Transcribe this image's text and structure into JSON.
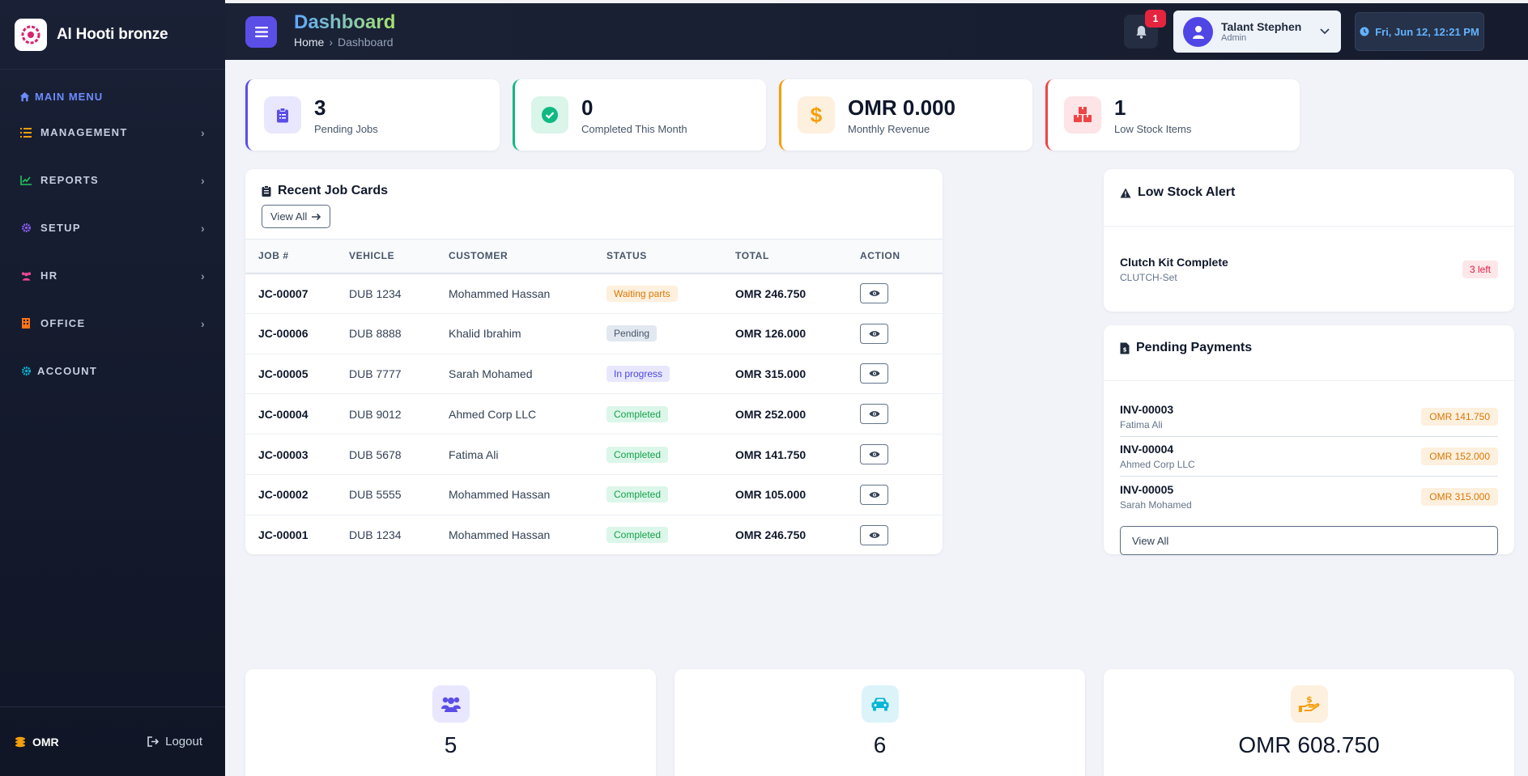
{
  "brand": {
    "name": "Al Hooti bronze"
  },
  "sidebar": {
    "main_menu": "MAIN MENU",
    "items": [
      {
        "label": "MANAGEMENT",
        "icon": "list-icon",
        "color": "#f59e0b"
      },
      {
        "label": "REPORTS",
        "icon": "chart-line-icon",
        "color": "#22c55e"
      },
      {
        "label": "SETUP",
        "icon": "gear-icon",
        "color": "#8b5cf6"
      },
      {
        "label": "HR",
        "icon": "users-icon",
        "color": "#ec4899"
      },
      {
        "label": "OFFICE",
        "icon": "building-icon",
        "color": "#f97316"
      },
      {
        "label": "ACCOUNT",
        "icon": "gear-icon",
        "color": "#06b6d4"
      }
    ],
    "footer": {
      "currency": "OMR",
      "logout": "Logout"
    }
  },
  "header": {
    "title": "Dashboard",
    "breadcrumb": {
      "home": "Home",
      "current": "Dashboard"
    },
    "notifications": "1",
    "user": {
      "name": "Talant Stephen",
      "role": "Admin"
    },
    "datetime": "Fri, Jun 12, 12:21 PM"
  },
  "stats": [
    {
      "value": "3",
      "label": "Pending Jobs",
      "accent": "#5b4ee6",
      "icon": "clipboard-icon"
    },
    {
      "value": "0",
      "label": "Completed This Month",
      "accent": "#10b981",
      "icon": "check-circle-icon"
    },
    {
      "value": "OMR 0.000",
      "label": "Monthly Revenue",
      "accent": "#f59e0b",
      "icon": "dollar-icon"
    },
    {
      "value": "1",
      "label": "Low Stock Items",
      "accent": "#ef4444",
      "icon": "boxes-icon"
    }
  ],
  "recent_jobs": {
    "title": "Recent Job Cards",
    "view_all": "View All",
    "columns": [
      "JOB #",
      "VEHICLE",
      "CUSTOMER",
      "STATUS",
      "TOTAL",
      "ACTION"
    ],
    "rows": [
      {
        "job": "JC-00007",
        "vehicle": "DUB 1234",
        "customer": "Mohammed Hassan",
        "status": "Waiting parts",
        "status_class": "st-waiting",
        "total": "OMR 246.750"
      },
      {
        "job": "JC-00006",
        "vehicle": "DUB 8888",
        "customer": "Khalid Ibrahim",
        "status": "Pending",
        "status_class": "st-pending",
        "total": "OMR 126.000"
      },
      {
        "job": "JC-00005",
        "vehicle": "DUB 7777",
        "customer": "Sarah Mohamed",
        "status": "In progress",
        "status_class": "st-progress",
        "total": "OMR 315.000"
      },
      {
        "job": "JC-00004",
        "vehicle": "DUB 9012",
        "customer": "Ahmed Corp LLC",
        "status": "Completed",
        "status_class": "st-completed",
        "total": "OMR 252.000"
      },
      {
        "job": "JC-00003",
        "vehicle": "DUB 5678",
        "customer": "Fatima Ali",
        "status": "Completed",
        "status_class": "st-completed",
        "total": "OMR 141.750"
      },
      {
        "job": "JC-00002",
        "vehicle": "DUB 5555",
        "customer": "Mohammed Hassan",
        "status": "Completed",
        "status_class": "st-completed",
        "total": "OMR 105.000"
      },
      {
        "job": "JC-00001",
        "vehicle": "DUB 1234",
        "customer": "Mohammed Hassan",
        "status": "Completed",
        "status_class": "st-completed",
        "total": "OMR 246.750"
      }
    ]
  },
  "low_stock": {
    "title": "Low Stock Alert",
    "items": [
      {
        "name": "Clutch Kit Complete",
        "sku": "CLUTCH-Set",
        "left": "3 left"
      }
    ]
  },
  "pending_payments": {
    "title": "Pending Payments",
    "view_all": "View All",
    "items": [
      {
        "invoice": "INV-00003",
        "customer": "Fatima Ali",
        "amount": "OMR 141.750"
      },
      {
        "invoice": "INV-00004",
        "customer": "Ahmed Corp LLC",
        "amount": "OMR 152.000"
      },
      {
        "invoice": "INV-00005",
        "customer": "Sarah Mohamed",
        "amount": "OMR 315.000"
      }
    ]
  },
  "kpis": [
    {
      "value": "5",
      "icon": "users-icon"
    },
    {
      "value": "6",
      "icon": "car-icon"
    },
    {
      "value": "OMR 608.750",
      "icon": "hand-coin-icon"
    }
  ]
}
